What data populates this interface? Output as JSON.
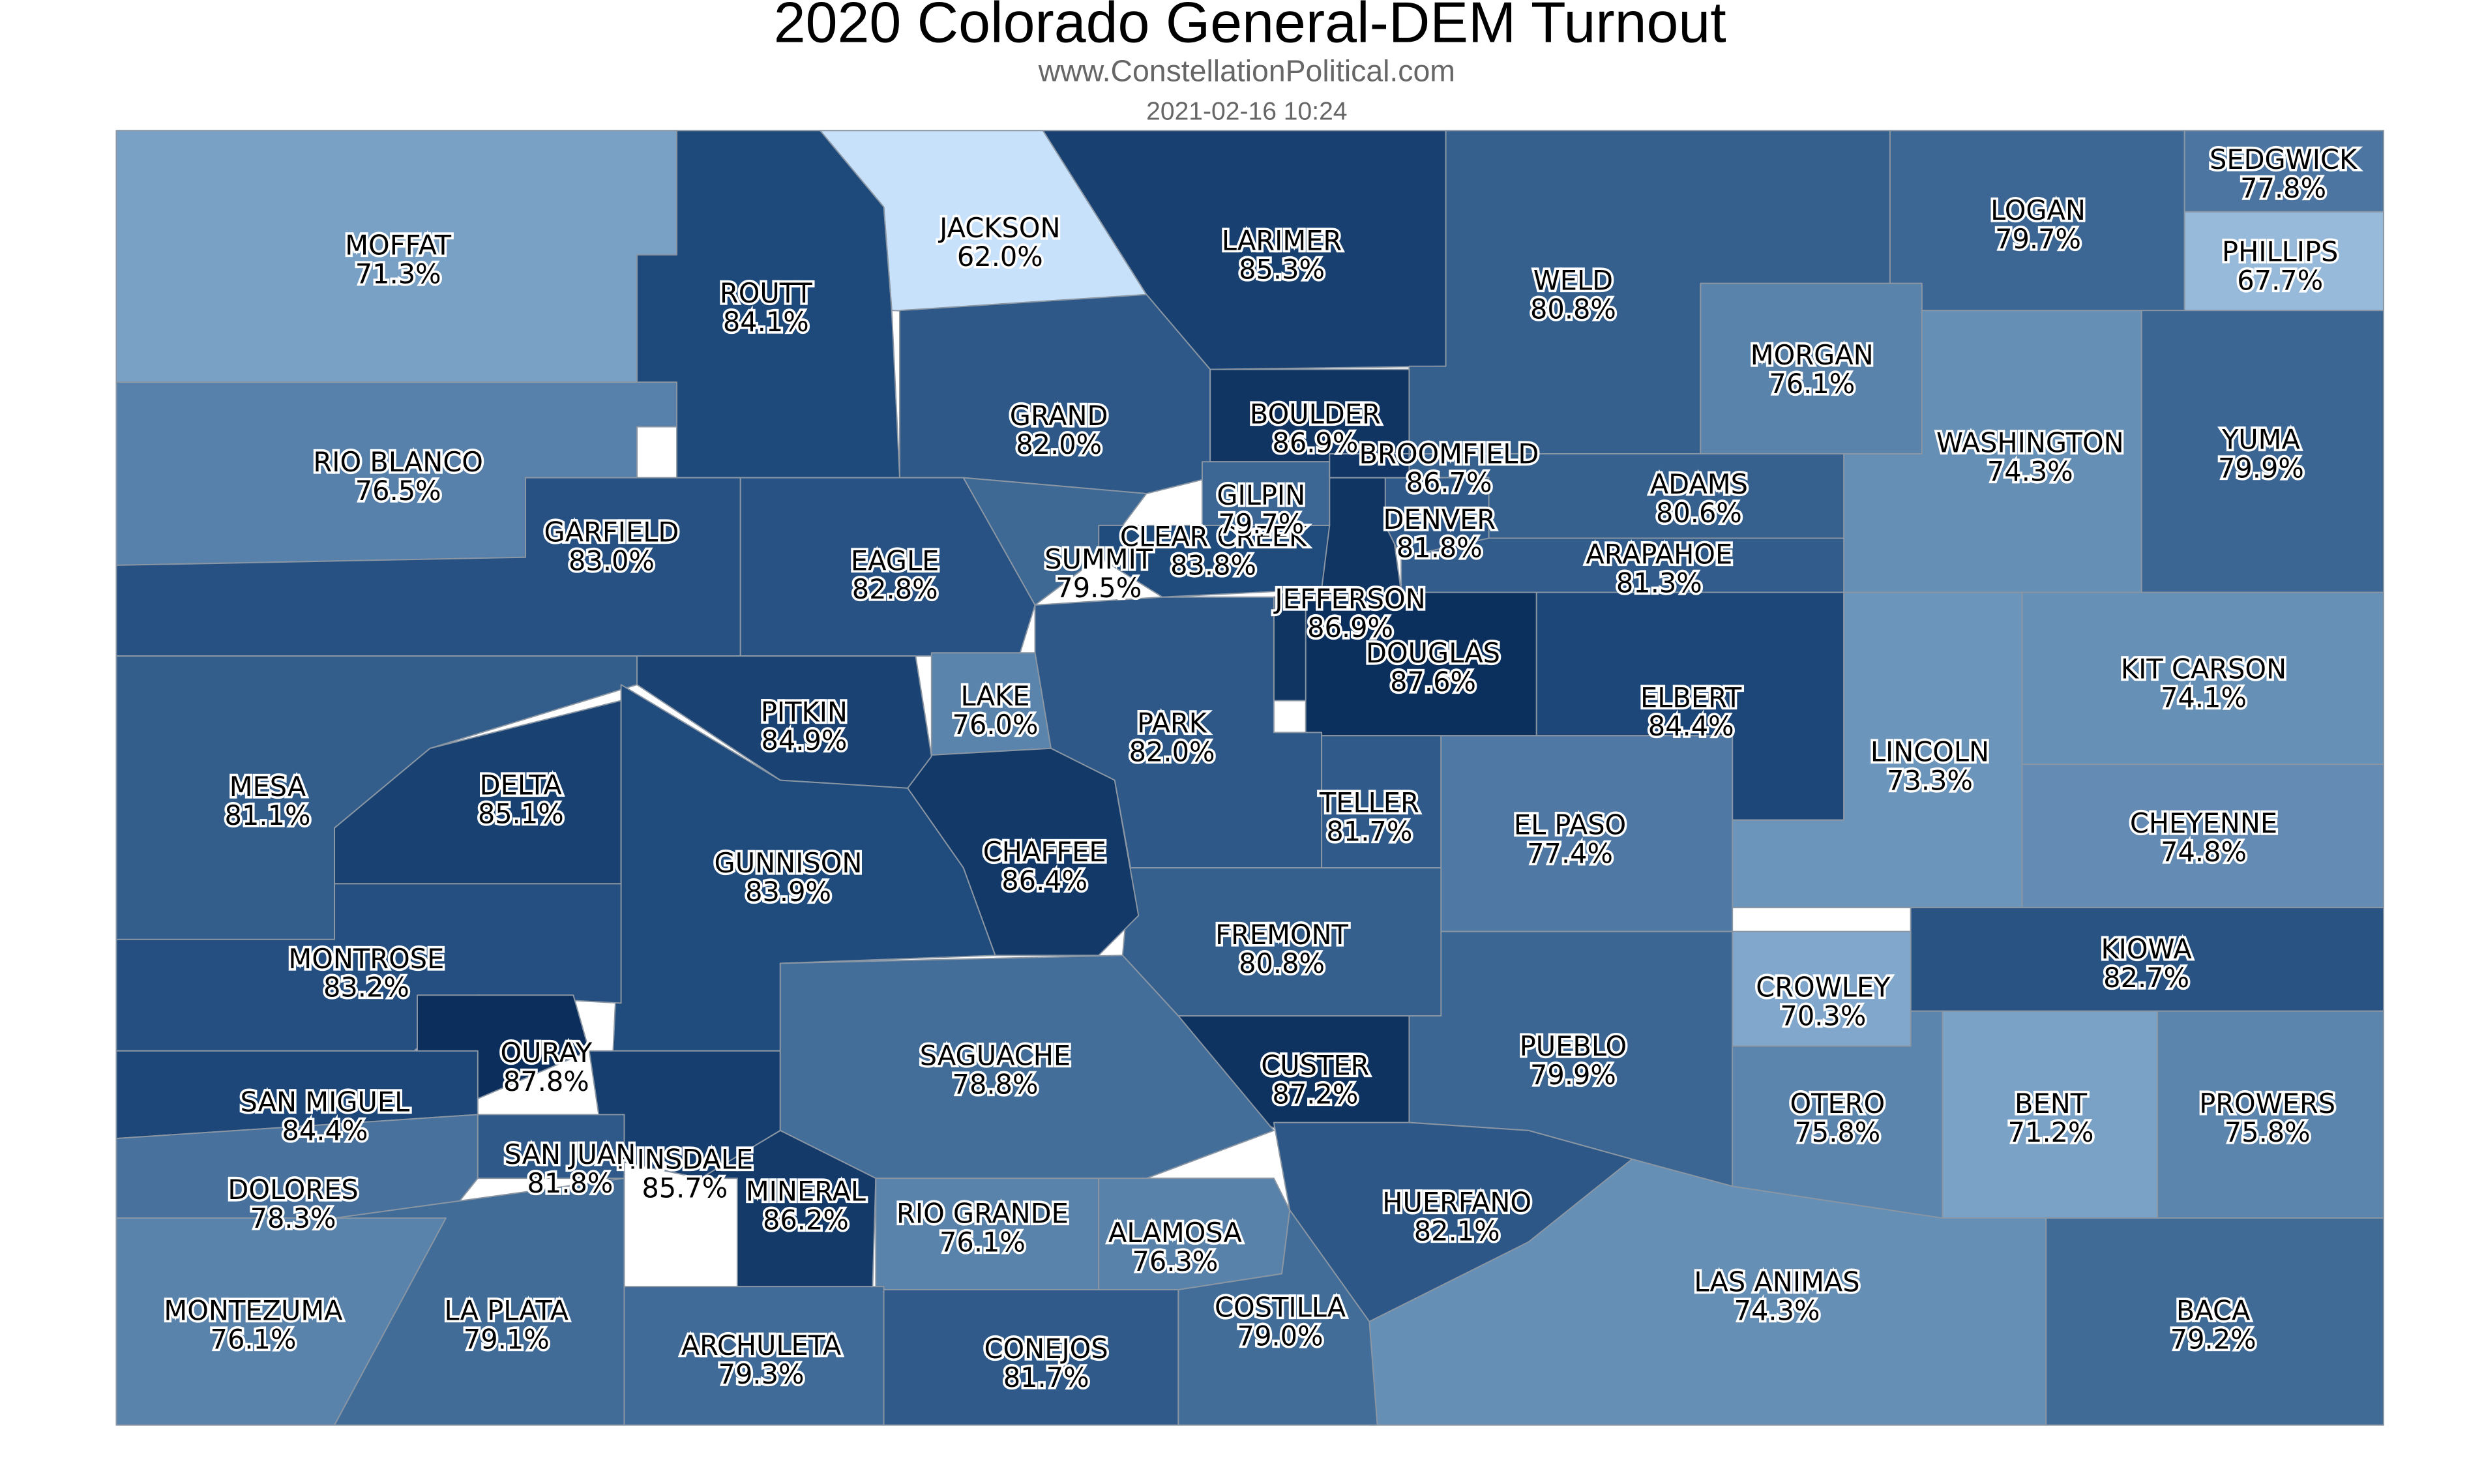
{
  "map": {
    "title": "2020 Colorado General-DEM Turnout",
    "source": "www.ConstellationPolitical.com",
    "timestamp": "2021-02-16 10:24",
    "counties": [
      {
        "name": "MOFFAT",
        "value": 71.3,
        "label": "71.3%"
      },
      {
        "name": "JACKSON",
        "value": 62.0,
        "label": "62.0%"
      },
      {
        "name": "ROUTT",
        "value": 84.1,
        "label": "84.1%"
      },
      {
        "name": "LARIMER",
        "value": 85.3,
        "label": "85.3%"
      },
      {
        "name": "WELD",
        "value": 80.8,
        "label": "80.8%"
      },
      {
        "name": "LOGAN",
        "value": 79.7,
        "label": "79.7%"
      },
      {
        "name": "SEDGWICK",
        "value": 77.8,
        "label": "77.8%"
      },
      {
        "name": "PHILLIPS",
        "value": 67.7,
        "label": "67.7%"
      },
      {
        "name": "MORGAN",
        "value": 76.1,
        "label": "76.1%"
      },
      {
        "name": "WASHINGTON",
        "value": 74.3,
        "label": "74.3%"
      },
      {
        "name": "YUMA",
        "value": 79.9,
        "label": "79.9%"
      },
      {
        "name": "RIO BLANCO",
        "value": 76.5,
        "label": "76.5%"
      },
      {
        "name": "GARFIELD",
        "value": 83.0,
        "label": "83.0%"
      },
      {
        "name": "GRAND",
        "value": 82.0,
        "label": "82.0%"
      },
      {
        "name": "EAGLE",
        "value": 82.8,
        "label": "82.8%"
      },
      {
        "name": "SUMMIT",
        "value": 79.5,
        "label": "79.5%"
      },
      {
        "name": "BOULDER",
        "value": 86.9,
        "label": "86.9%"
      },
      {
        "name": "ADAMS",
        "value": 80.6,
        "label": "80.6%"
      },
      {
        "name": "ARAPAHOE",
        "value": 81.3,
        "label": "81.3%"
      },
      {
        "name": "JEFFERSON",
        "value": 86.9,
        "label": "86.9%"
      },
      {
        "name": "CLEAR CREEK",
        "value": 83.8,
        "label": "83.8%"
      },
      {
        "name": "GILPIN",
        "value": 79.7,
        "label": "79.7%"
      },
      {
        "name": "DENVER",
        "value": 81.8,
        "label": "81.8%"
      },
      {
        "name": "BROOMFIELD",
        "value": 86.7,
        "label": "86.7%"
      },
      {
        "name": "DOUGLAS",
        "value": 87.6,
        "label": "87.6%"
      },
      {
        "name": "ELBERT",
        "value": 84.4,
        "label": "84.4%"
      },
      {
        "name": "LINCOLN",
        "value": 73.3,
        "label": "73.3%"
      },
      {
        "name": "KIT CARSON",
        "value": 74.1,
        "label": "74.1%"
      },
      {
        "name": "CHEYENNE",
        "value": 74.8,
        "label": "74.8%"
      },
      {
        "name": "PARK",
        "value": 82.0,
        "label": "82.0%"
      },
      {
        "name": "LAKE",
        "value": 76.0,
        "label": "76.0%"
      },
      {
        "name": "TELLER",
        "value": 81.7,
        "label": "81.7%"
      },
      {
        "name": "EL PASO",
        "value": 77.4,
        "label": "77.4%"
      },
      {
        "name": "KIOWA",
        "value": 82.7,
        "label": "82.7%"
      },
      {
        "name": "CROWLEY",
        "value": 70.3,
        "label": "70.3%"
      },
      {
        "name": "PUEBLO",
        "value": 79.9,
        "label": "79.9%"
      },
      {
        "name": "FREMONT",
        "value": 80.8,
        "label": "80.8%"
      },
      {
        "name": "CUSTER",
        "value": 87.2,
        "label": "87.2%"
      },
      {
        "name": "CHAFFEE",
        "value": 86.4,
        "label": "86.4%"
      },
      {
        "name": "PITKIN",
        "value": 84.9,
        "label": "84.9%"
      },
      {
        "name": "MESA",
        "value": 81.1,
        "label": "81.1%"
      },
      {
        "name": "DELTA",
        "value": 85.1,
        "label": "85.1%"
      },
      {
        "name": "GUNNISON",
        "value": 83.9,
        "label": "83.9%"
      },
      {
        "name": "MONTROSE",
        "value": 83.2,
        "label": "83.2%"
      },
      {
        "name": "OURAY",
        "value": 87.8,
        "label": "87.8%"
      },
      {
        "name": "SAN MIGUEL",
        "value": 84.4,
        "label": "84.4%"
      },
      {
        "name": "HINSDALE",
        "value": 85.7,
        "label": "85.7%"
      },
      {
        "name": "SAGUACHE",
        "value": 78.8,
        "label": "78.8%"
      },
      {
        "name": "HUERFANO",
        "value": 82.1,
        "label": "82.1%"
      },
      {
        "name": "LAS ANIMAS",
        "value": 74.3,
        "label": "74.3%"
      },
      {
        "name": "OTERO",
        "value": 75.8,
        "label": "75.8%"
      },
      {
        "name": "BENT",
        "value": 71.2,
        "label": "71.2%"
      },
      {
        "name": "PROWERS",
        "value": 75.8,
        "label": "75.8%"
      },
      {
        "name": "BACA",
        "value": 79.2,
        "label": "79.2%"
      },
      {
        "name": "DOLORES",
        "value": 78.3,
        "label": "78.3%"
      },
      {
        "name": "SAN JUAN",
        "value": 81.8,
        "label": "81.8%"
      },
      {
        "name": "MINERAL",
        "value": 86.2,
        "label": "86.2%"
      },
      {
        "name": "RIO GRANDE",
        "value": 76.1,
        "label": "76.1%"
      },
      {
        "name": "ALAMOSA",
        "value": 76.3,
        "label": "76.3%"
      },
      {
        "name": "COSTILLA",
        "value": 79.0,
        "label": "79.0%"
      },
      {
        "name": "CONEJOS",
        "value": 81.7,
        "label": "81.7%"
      },
      {
        "name": "ARCHULETA",
        "value": 79.3,
        "label": "79.3%"
      },
      {
        "name": "LA PLATA",
        "value": 79.1,
        "label": "79.1%"
      },
      {
        "name": "MONTEZUMA",
        "value": 76.1,
        "label": "76.1%"
      }
    ]
  }
}
